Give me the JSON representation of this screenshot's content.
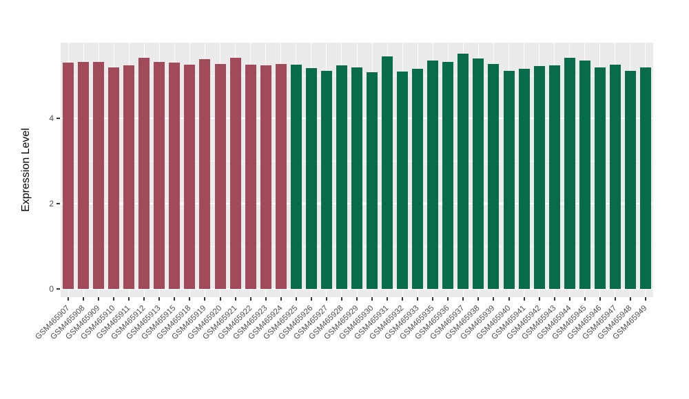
{
  "chart_data": {
    "type": "bar",
    "title": "",
    "xlabel": "",
    "ylabel": "Expression Level",
    "ylim": [
      0,
      5.8
    ],
    "yticks": [
      0,
      2,
      4
    ],
    "yticks_minor": [
      1,
      3,
      5
    ],
    "grid": true,
    "legend_position": "none",
    "panel_background": "#EBEBEB",
    "gridline_color": "#FFFFFF",
    "group_colors": {
      "maroon": "#A04A5A",
      "green": "#086B4B"
    },
    "categories": [
      "GSM465907",
      "GSM465908",
      "GSM465909",
      "GSM465910",
      "GSM465911",
      "GSM465912",
      "GSM465913",
      "GSM465915",
      "GSM465918",
      "GSM465919",
      "GSM465920",
      "GSM465921",
      "GSM465922",
      "GSM465923",
      "GSM465924",
      "GSM465925",
      "GSM465926",
      "GSM465927",
      "GSM465928",
      "GSM465929",
      "GSM465930",
      "GSM465931",
      "GSM465932",
      "GSM465933",
      "GSM465935",
      "GSM465936",
      "GSM465937",
      "GSM465938",
      "GSM465939",
      "GSM465940",
      "GSM465941",
      "GSM465942",
      "GSM465943",
      "GSM465944",
      "GSM465945",
      "GSM465946",
      "GSM465947",
      "GSM465948",
      "GSM465949"
    ],
    "values": [
      5.3,
      5.32,
      5.33,
      5.2,
      5.24,
      5.42,
      5.33,
      5.3,
      5.26,
      5.38,
      5.28,
      5.42,
      5.26,
      5.25,
      5.28,
      5.26,
      5.18,
      5.12,
      5.24,
      5.2,
      5.08,
      5.45,
      5.1,
      5.16,
      5.36,
      5.32,
      5.52,
      5.4,
      5.28,
      5.12,
      5.16,
      5.22,
      5.24,
      5.42,
      5.36,
      5.2,
      5.26,
      5.12,
      5.2
    ],
    "groups": [
      "maroon",
      "maroon",
      "maroon",
      "maroon",
      "maroon",
      "maroon",
      "maroon",
      "maroon",
      "maroon",
      "maroon",
      "maroon",
      "maroon",
      "maroon",
      "maroon",
      "maroon",
      "green",
      "green",
      "green",
      "green",
      "green",
      "green",
      "green",
      "green",
      "green",
      "green",
      "green",
      "green",
      "green",
      "green",
      "green",
      "green",
      "green",
      "green",
      "green",
      "green",
      "green",
      "green",
      "green",
      "green"
    ]
  }
}
